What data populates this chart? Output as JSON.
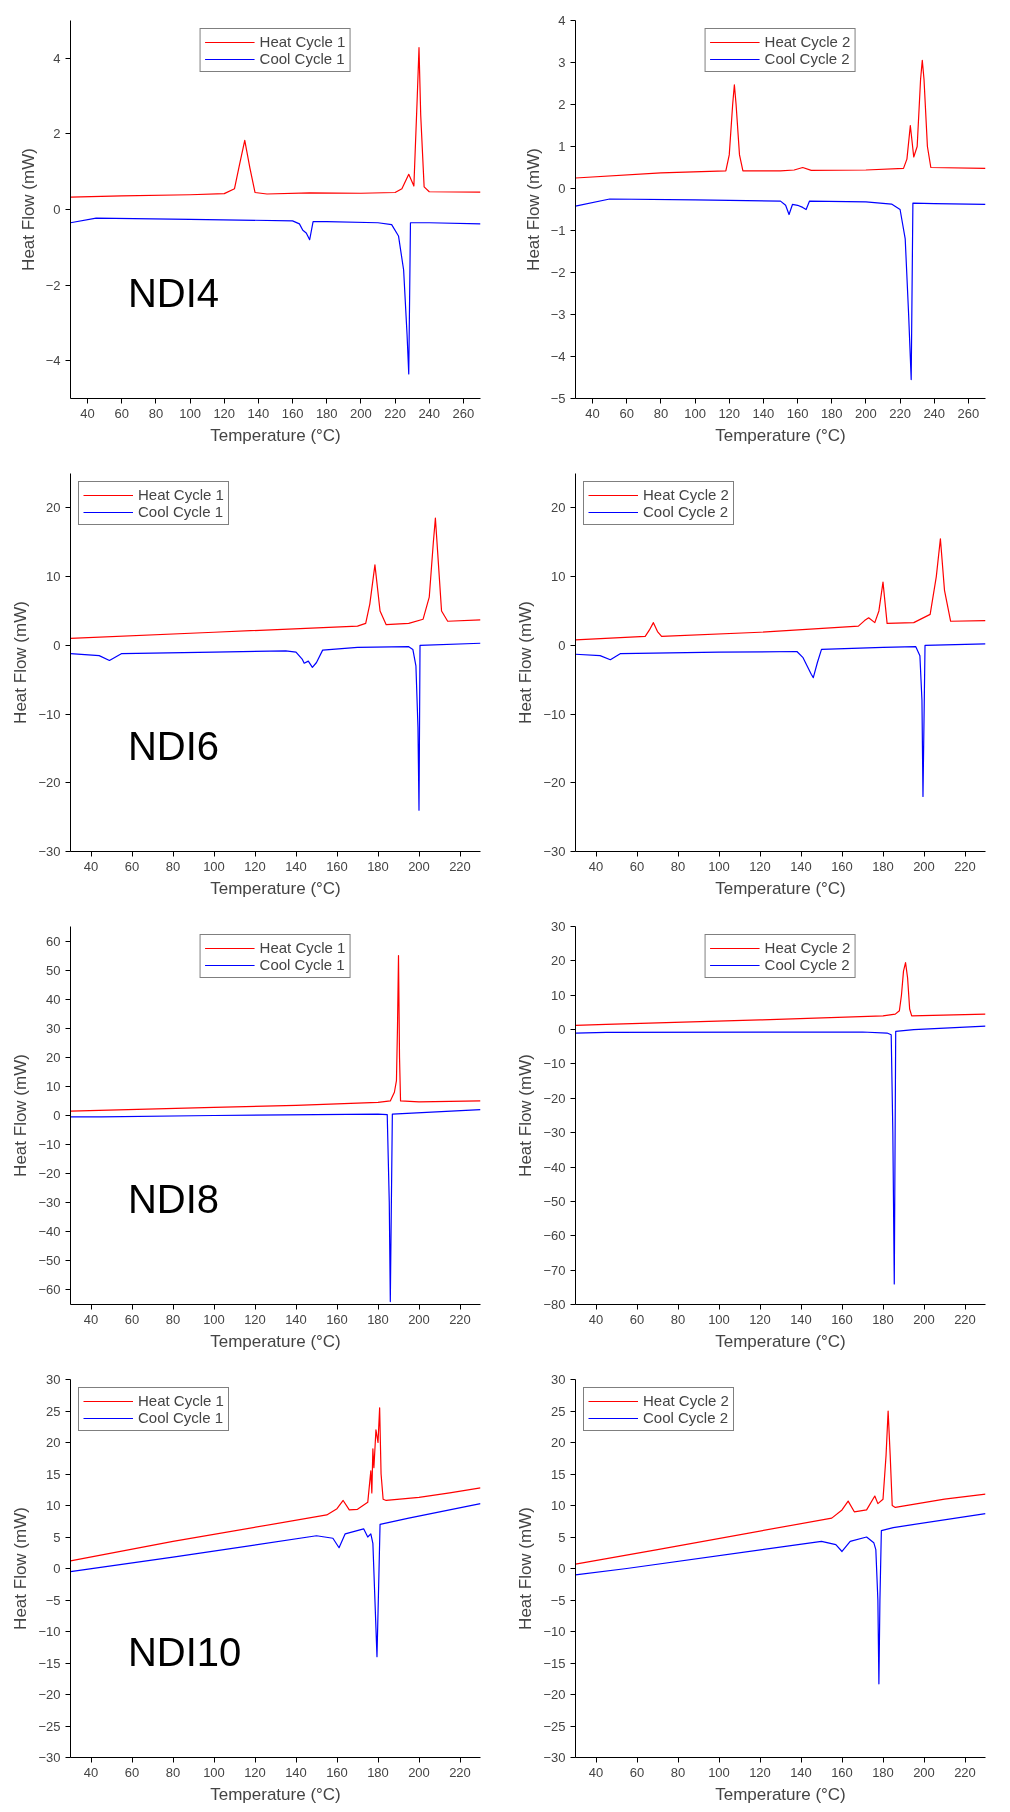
{
  "chart_data": [
    {
      "type": "line",
      "xlabel": "Temperature (°C)",
      "ylabel": "Heat Flow (mW)",
      "xlim": [
        30,
        270
      ],
      "xticks": [
        40,
        60,
        80,
        100,
        120,
        140,
        160,
        180,
        200,
        220,
        240,
        260
      ],
      "ylim": [
        -5,
        5
      ],
      "yticks": [
        -4,
        -2,
        0,
        2,
        4
      ],
      "legend": "top",
      "annotations": [
        "NDI4"
      ],
      "series": [
        {
          "name": "Heat Cycle 1",
          "color": "#ff0000",
          "x": [
            30,
            60,
            100,
            120,
            126,
            129,
            132,
            135,
            138,
            145,
            170,
            200,
            220,
            224,
            228,
            231,
            233,
            234,
            235,
            237,
            240,
            270
          ],
          "values": [
            0.33,
            0.36,
            0.39,
            0.42,
            0.55,
            1.2,
            1.83,
            1.1,
            0.45,
            0.41,
            0.44,
            0.43,
            0.45,
            0.55,
            0.93,
            0.62,
            3.0,
            4.28,
            2.5,
            0.6,
            0.47,
            0.46
          ]
        },
        {
          "name": "Cool Cycle 1",
          "color": "#0000ff",
          "x": [
            30,
            45,
            100,
            160,
            164,
            166,
            168,
            170,
            172,
            180,
            210,
            218,
            222,
            225,
            227,
            228,
            229,
            240,
            270
          ],
          "values": [
            -0.35,
            -0.23,
            -0.26,
            -0.3,
            -0.38,
            -0.55,
            -0.62,
            -0.8,
            -0.32,
            -0.32,
            -0.35,
            -0.4,
            -0.7,
            -1.6,
            -3.3,
            -4.35,
            -0.35,
            -0.35,
            -0.38
          ]
        }
      ]
    },
    {
      "type": "line",
      "xlabel": "Temperature (°C)",
      "ylabel": "Heat Flow (mW)",
      "xlim": [
        30,
        270
      ],
      "xticks": [
        40,
        60,
        80,
        100,
        120,
        140,
        160,
        180,
        200,
        220,
        240,
        260
      ],
      "ylim": [
        -5,
        4
      ],
      "yticks": [
        -5,
        -4,
        -3,
        -2,
        -1,
        0,
        1,
        2,
        3,
        4
      ],
      "legend": "top",
      "series": [
        {
          "name": "Heat Cycle 2",
          "color": "#ff0000",
          "x": [
            30,
            80,
            118,
            120,
            122,
            123,
            124,
            126,
            128,
            150,
            158,
            163,
            168,
            200,
            222,
            224,
            226,
            228,
            230,
            232,
            233,
            234,
            236,
            238,
            270
          ],
          "values": [
            0.25,
            0.37,
            0.42,
            0.8,
            2.0,
            2.47,
            2.0,
            0.8,
            0.42,
            0.42,
            0.44,
            0.5,
            0.43,
            0.44,
            0.48,
            0.7,
            1.5,
            0.75,
            1.0,
            2.6,
            3.05,
            2.6,
            1.0,
            0.5,
            0.48
          ]
        },
        {
          "name": "Cool Cycle 2",
          "color": "#0000ff",
          "x": [
            30,
            50,
            100,
            150,
            153,
            155,
            157,
            160,
            163,
            165,
            167,
            200,
            215,
            220,
            223,
            225,
            226.5,
            227.5,
            240,
            270
          ],
          "values": [
            -0.42,
            -0.25,
            -0.27,
            -0.3,
            -0.4,
            -0.62,
            -0.38,
            -0.4,
            -0.45,
            -0.5,
            -0.3,
            -0.32,
            -0.37,
            -0.5,
            -1.2,
            -3.0,
            -4.55,
            -0.35,
            -0.36,
            -0.38
          ]
        }
      ]
    },
    {
      "type": "line",
      "xlabel": "Temperature (°C)",
      "ylabel": "Heat Flow (mW)",
      "xlim": [
        30,
        230
      ],
      "xticks": [
        40,
        60,
        80,
        100,
        120,
        140,
        160,
        180,
        200,
        220
      ],
      "ylim": [
        -30,
        25
      ],
      "yticks": [
        -30,
        -20,
        -10,
        0,
        10,
        20
      ],
      "legend": "top left",
      "annotations": [
        "NDI6"
      ],
      "series": [
        {
          "name": "Heat Cycle 1",
          "color": "#ff0000",
          "x": [
            30,
            100,
            170,
            174,
            176,
            178.5,
            181,
            184,
            195,
            202,
            205,
            207,
            208,
            209,
            211,
            214,
            230
          ],
          "values": [
            1.0,
            1.9,
            2.8,
            3.2,
            6,
            11.7,
            5,
            3.0,
            3.2,
            3.8,
            7,
            15,
            18.5,
            14,
            5,
            3.5,
            3.7
          ]
        },
        {
          "name": "Cool Cycle 1",
          "color": "#0000ff",
          "x": [
            30,
            44,
            49,
            55,
            100,
            135,
            140,
            143,
            144,
            146,
            148,
            150,
            153,
            170,
            195,
            197,
            198.5,
            199.5,
            200,
            200.5,
            230
          ],
          "values": [
            -1.2,
            -1.5,
            -2.2,
            -1.2,
            -1.0,
            -0.8,
            -1.0,
            -2.0,
            -2.6,
            -2.3,
            -3.2,
            -2.5,
            -0.7,
            -0.3,
            -0.2,
            -0.6,
            -3,
            -12,
            -24,
            0,
            0.3
          ]
        }
      ]
    },
    {
      "type": "line",
      "xlabel": "Temperature (°C)",
      "ylabel": "Heat Flow (mW)",
      "xlim": [
        30,
        230
      ],
      "xticks": [
        40,
        60,
        80,
        100,
        120,
        140,
        160,
        180,
        200,
        220
      ],
      "ylim": [
        -30,
        25
      ],
      "yticks": [
        -30,
        -20,
        -10,
        0,
        10,
        20
      ],
      "legend": "top left",
      "series": [
        {
          "name": "Heat Cycle 2",
          "color": "#ff0000",
          "x": [
            30,
            64,
            66,
            68,
            70,
            72,
            120,
            168,
            171,
            173,
            176,
            178,
            180,
            182,
            195,
            203,
            206,
            208,
            210,
            213,
            230
          ],
          "values": [
            0.8,
            1.3,
            2.2,
            3.3,
            2.0,
            1.3,
            1.9,
            2.8,
            3.6,
            4.0,
            3.3,
            5,
            9.2,
            3.2,
            3.3,
            4.5,
            10,
            15.5,
            8,
            3.5,
            3.6
          ]
        },
        {
          "name": "Cool Cycle 2",
          "color": "#0000ff",
          "x": [
            30,
            42,
            47,
            52,
            100,
            138,
            141,
            143,
            145,
            146,
            148,
            150,
            180,
            196,
            198,
            199,
            199.5,
            200.5,
            230
          ],
          "values": [
            -1.3,
            -1.5,
            -2.1,
            -1.2,
            -1.0,
            -0.9,
            -1.8,
            -3,
            -4.2,
            -4.7,
            -2.5,
            -0.6,
            -0.3,
            -0.2,
            -1.5,
            -8,
            -22,
            0,
            0.2
          ]
        }
      ]
    },
    {
      "type": "line",
      "xlabel": "Temperature (°C)",
      "ylabel": "Heat Flow (mW)",
      "xlim": [
        30,
        230
      ],
      "xticks": [
        40,
        60,
        80,
        100,
        120,
        140,
        160,
        180,
        200,
        220
      ],
      "ylim": [
        -65,
        65
      ],
      "yticks": [
        -60,
        -50,
        -40,
        -30,
        -20,
        -10,
        0,
        10,
        20,
        30,
        40,
        50,
        60
      ],
      "legend": "top",
      "annotations": [
        "NDI8"
      ],
      "series": [
        {
          "name": "Heat Cycle 1",
          "color": "#ff0000",
          "x": [
            30,
            100,
            140,
            180,
            186,
            188,
            189,
            189.5,
            190,
            190.5,
            191,
            200,
            230
          ],
          "values": [
            1.5,
            2.8,
            3.5,
            4.5,
            5,
            8,
            12,
            30,
            55,
            20,
            5,
            4.7,
            5
          ]
        },
        {
          "name": "Cool Cycle 1",
          "color": "#0000ff",
          "x": [
            30,
            45,
            100,
            180,
            184.5,
            185.5,
            186,
            187,
            230
          ],
          "values": [
            -0.5,
            -0.5,
            0,
            0.5,
            0.3,
            -30,
            -64,
            0.5,
            2
          ]
        }
      ]
    },
    {
      "type": "line",
      "xlabel": "Temperature (°C)",
      "ylabel": "Heat Flow (mW)",
      "xlim": [
        30,
        230
      ],
      "xticks": [
        40,
        60,
        80,
        100,
        120,
        140,
        160,
        180,
        200,
        220
      ],
      "ylim": [
        -80,
        30
      ],
      "yticks": [
        -80,
        -70,
        -60,
        -50,
        -40,
        -30,
        -20,
        -10,
        0,
        10,
        20,
        30
      ],
      "legend": "top",
      "series": [
        {
          "name": "Heat Cycle 2",
          "color": "#ff0000",
          "x": [
            30,
            45,
            120,
            180,
            186,
            188,
            189,
            190,
            191,
            192,
            193,
            194,
            230
          ],
          "values": [
            1.2,
            1.5,
            2.8,
            4.0,
            4.5,
            5.5,
            10,
            17,
            19.5,
            15,
            6,
            4.0,
            4.5
          ]
        },
        {
          "name": "Cool Cycle 2",
          "color": "#0000ff",
          "x": [
            30,
            45,
            170,
            182,
            184,
            184.8,
            185.5,
            186.2,
            195,
            230
          ],
          "values": [
            -1,
            -0.8,
            -0.7,
            -1.0,
            -1.5,
            -30,
            -74,
            -0.5,
            0,
            1
          ]
        }
      ]
    },
    {
      "type": "line",
      "xlabel": "Temperature (°C)",
      "ylabel": "Heat Flow (mW)",
      "xlim": [
        30,
        230
      ],
      "xticks": [
        40,
        60,
        80,
        100,
        120,
        140,
        160,
        180,
        200,
        220
      ],
      "ylim": [
        -30,
        30
      ],
      "yticks": [
        -30,
        -25,
        -20,
        -15,
        -10,
        -5,
        0,
        5,
        10,
        15,
        20,
        25,
        30
      ],
      "legend": "top left",
      "annotations": [
        "NDI10"
      ],
      "series": [
        {
          "name": "Heat Cycle 1",
          "color": "#ff0000",
          "x": [
            30,
            80,
            155,
            160,
            163,
            166,
            170,
            175,
            176.5,
            177,
            177.5,
            178,
            179,
            180,
            180.8,
            181.5,
            182.5,
            184,
            200,
            215,
            230
          ],
          "values": [
            1.2,
            4.3,
            8.5,
            9.5,
            10.8,
            9.3,
            9.4,
            10.5,
            15.5,
            12,
            19,
            16,
            22,
            20,
            25.5,
            15,
            11,
            10.8,
            11.3,
            12,
            12.8
          ]
        },
        {
          "name": "Cool Cycle 1",
          "color": "#0000ff",
          "x": [
            30,
            80,
            150,
            158,
            161,
            164,
            173,
            175,
            176.5,
            177.5,
            178.5,
            179.5,
            180.3,
            181,
            195,
            230
          ],
          "values": [
            -0.5,
            1.8,
            5.2,
            4.8,
            3.3,
            5.5,
            6.3,
            5.0,
            5.5,
            4,
            -5,
            -14,
            -3,
            7,
            8,
            10.3
          ]
        }
      ]
    },
    {
      "type": "line",
      "xlabel": "Temperature (°C)",
      "ylabel": "Heat Flow (mW)",
      "xlim": [
        30,
        230
      ],
      "xticks": [
        40,
        60,
        80,
        100,
        120,
        140,
        160,
        180,
        200,
        220
      ],
      "ylim": [
        -30,
        30
      ],
      "yticks": [
        -30,
        -25,
        -20,
        -15,
        -10,
        -5,
        0,
        5,
        10,
        15,
        20,
        25,
        30
      ],
      "legend": "top left",
      "series": [
        {
          "name": "Heat Cycle 2",
          "color": "#ff0000",
          "x": [
            30,
            70,
            155,
            160,
            163,
            166,
            172,
            176,
            177.5,
            180,
            181.5,
            182.5,
            183.5,
            184.5,
            186,
            210,
            230
          ],
          "values": [
            0.7,
            3,
            8,
            9.3,
            10.7,
            9,
            9.3,
            11.5,
            10.3,
            11,
            18,
            25,
            18,
            10,
            9.7,
            11,
            11.8
          ]
        },
        {
          "name": "Cool Cycle 2",
          "color": "#0000ff",
          "x": [
            30,
            55,
            150,
            157,
            160,
            164,
            172,
            175.5,
            176.5,
            177.5,
            178,
            178.5,
            179.2,
            185,
            230
          ],
          "values": [
            -1,
            0,
            4.3,
            3.8,
            2.7,
            4.3,
            5,
            4.1,
            3,
            -5,
            -18.3,
            -5,
            6,
            6.5,
            8.7
          ]
        }
      ]
    }
  ]
}
